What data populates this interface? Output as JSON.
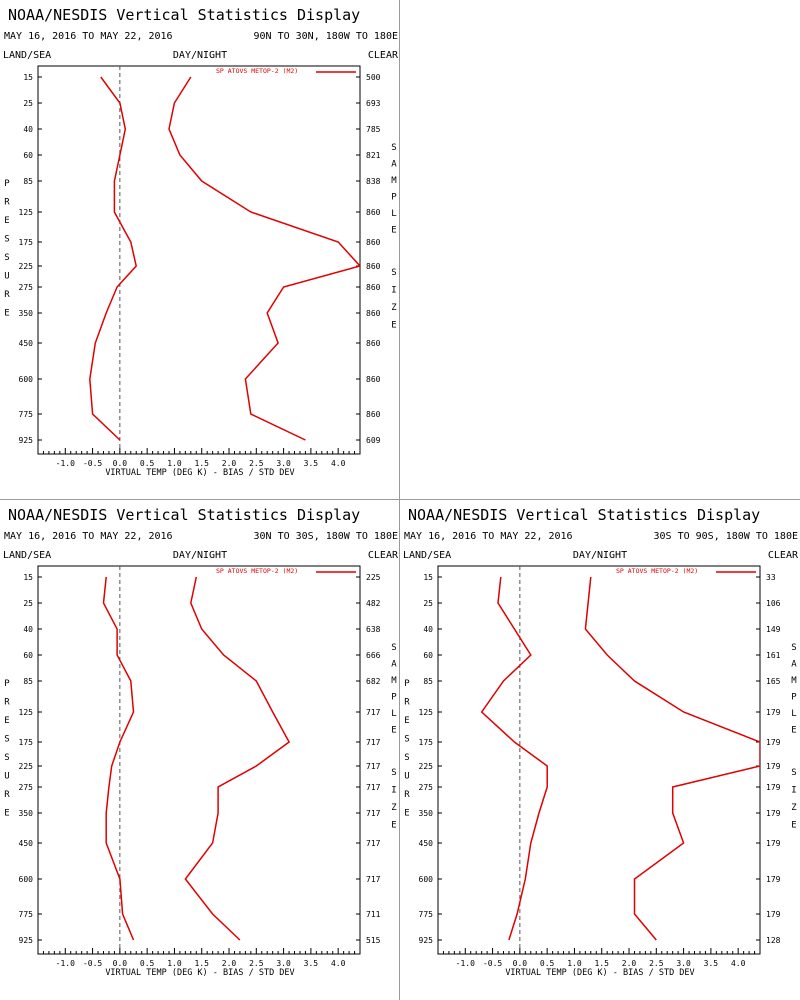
{
  "colors": {
    "series": "#e00000",
    "zero_line": "#555555",
    "axis": "#000000"
  },
  "chart_data": [
    {
      "type": "line",
      "title": "NOAA/NESDIS Vertical Statistics Display",
      "date_range": "MAY 16, 2016 TO MAY 22, 2016",
      "region": "90N TO 30N, 180W TO 180E",
      "surface_label": "LAND/SEA",
      "time_label": "DAY/NIGHT",
      "sky_label": "CLEAR",
      "ylabel": "PRESSURE",
      "ylabel_right": "SAMPLE SIZE",
      "xlabel": "VIRTUAL TEMP (DEG K) - BIAS / STD DEV",
      "legend": "SP ATOVS METOP-2 (M2)",
      "xlim": [
        -1.5,
        4.4
      ],
      "x_ticks": [
        "-1.0",
        "-0.5",
        "0.0",
        "0.5",
        "1.0",
        "1.5",
        "2.0",
        "2.5",
        "3.0",
        "3.5",
        "4.0"
      ],
      "pressure_levels": [
        "15",
        "25",
        "40",
        "60",
        "85",
        "125",
        "175",
        "225",
        "275",
        "350",
        "450",
        "600",
        "775",
        "925"
      ],
      "sample_size": [
        "500",
        "693",
        "785",
        "821",
        "838",
        "860",
        "860",
        "860",
        "860",
        "860",
        "860",
        "860",
        "860",
        "609"
      ],
      "series": [
        {
          "name": "bias",
          "values": [
            -0.35,
            0.0,
            0.1,
            0.0,
            -0.1,
            -0.1,
            0.2,
            0.3,
            -0.05,
            -0.25,
            -0.45,
            -0.55,
            -0.5,
            0.0
          ]
        },
        {
          "name": "std dev",
          "values": [
            1.3,
            1.0,
            0.9,
            1.1,
            1.5,
            2.4,
            4.0,
            4.4,
            3.0,
            2.7,
            2.9,
            2.3,
            2.4,
            3.4
          ]
        }
      ]
    },
    {
      "type": "line",
      "title": "NOAA/NESDIS Vertical Statistics Display",
      "date_range": "MAY 16, 2016 TO MAY 22, 2016",
      "region": "30N TO 30S, 180W TO 180E",
      "surface_label": "LAND/SEA",
      "time_label": "DAY/NIGHT",
      "sky_label": "CLEAR",
      "ylabel": "PRESSURE",
      "ylabel_right": "SAMPLE SIZE",
      "xlabel": "VIRTUAL TEMP (DEG K) - BIAS / STD DEV",
      "legend": "SP ATOVS METOP-2 (M2)",
      "xlim": [
        -1.5,
        4.4
      ],
      "x_ticks": [
        "-1.0",
        "-0.5",
        "0.0",
        "0.5",
        "1.0",
        "1.5",
        "2.0",
        "2.5",
        "3.0",
        "3.5",
        "4.0"
      ],
      "pressure_levels": [
        "15",
        "25",
        "40",
        "60",
        "85",
        "125",
        "175",
        "225",
        "275",
        "350",
        "450",
        "600",
        "775",
        "925"
      ],
      "sample_size": [
        "225",
        "482",
        "638",
        "666",
        "682",
        "717",
        "717",
        "717",
        "717",
        "717",
        "717",
        "717",
        "711",
        "515"
      ],
      "series": [
        {
          "name": "bias",
          "values": [
            -0.25,
            -0.3,
            -0.05,
            -0.05,
            0.2,
            0.25,
            0.0,
            -0.15,
            -0.2,
            -0.25,
            -0.25,
            0.0,
            0.05,
            0.25
          ]
        },
        {
          "name": "std dev",
          "values": [
            1.4,
            1.3,
            1.5,
            1.9,
            2.5,
            2.8,
            3.1,
            2.5,
            1.8,
            1.8,
            1.7,
            1.2,
            1.7,
            2.2
          ]
        }
      ]
    },
    {
      "type": "line",
      "title": "NOAA/NESDIS Vertical Statistics Display",
      "date_range": "MAY 16, 2016 TO MAY 22, 2016",
      "region": "30S TO 90S, 180W TO 180E",
      "surface_label": "LAND/SEA",
      "time_label": "DAY/NIGHT",
      "sky_label": "CLEAR",
      "ylabel": "PRESSURE",
      "ylabel_right": "SAMPLE SIZE",
      "xlabel": "VIRTUAL TEMP (DEG K) - BIAS / STD DEV",
      "legend": "SP ATOVS METOP-2 (M2)",
      "xlim": [
        -1.5,
        4.4
      ],
      "x_ticks": [
        "-1.0",
        "-0.5",
        "0.0",
        "0.5",
        "1.0",
        "1.5",
        "2.0",
        "2.5",
        "3.0",
        "3.5",
        "4.0"
      ],
      "pressure_levels": [
        "15",
        "25",
        "40",
        "60",
        "85",
        "125",
        "175",
        "225",
        "275",
        "350",
        "450",
        "600",
        "775",
        "925"
      ],
      "sample_size": [
        "33",
        "106",
        "149",
        "161",
        "165",
        "179",
        "179",
        "179",
        "179",
        "179",
        "179",
        "179",
        "179",
        "128"
      ],
      "series": [
        {
          "name": "bias",
          "values": [
            -0.35,
            -0.4,
            -0.1,
            0.2,
            -0.3,
            -0.7,
            -0.1,
            0.5,
            0.5,
            0.35,
            0.2,
            0.1,
            -0.05,
            -0.2
          ]
        },
        {
          "name": "std dev",
          "values": [
            1.3,
            1.25,
            1.2,
            1.6,
            2.1,
            3.0,
            4.4,
            4.4,
            2.8,
            2.8,
            3.0,
            2.1,
            2.1,
            2.5
          ]
        }
      ]
    }
  ]
}
